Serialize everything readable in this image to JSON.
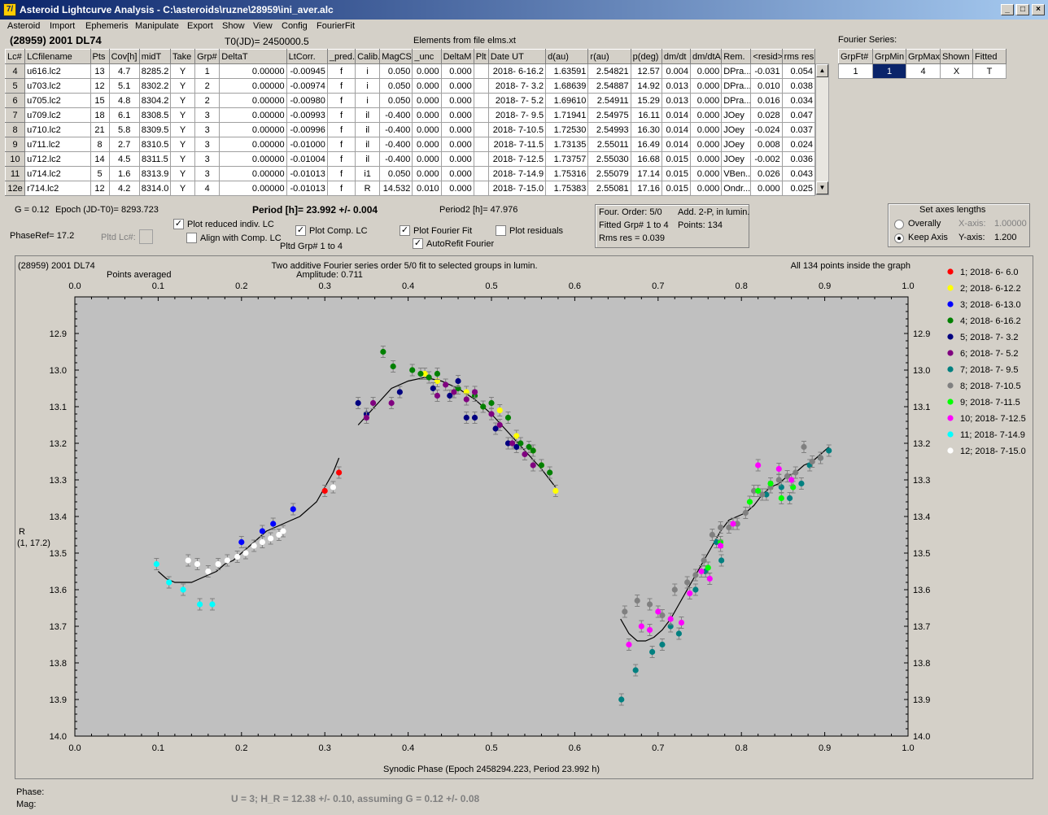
{
  "window": {
    "title": "Asteroid Lightcurve Analysis - C:\\asteroids\\ruzne\\28959\\ini_aver.alc",
    "icon_text": "7/",
    "minimize_glyph": "_",
    "maximize_glyph": "□",
    "close_glyph": "×"
  },
  "menu": [
    "Asteroid",
    "Import",
    "Ephemeris",
    "Manipulate",
    "Export",
    "Show",
    "View",
    "Config",
    "FourierFit"
  ],
  "header": {
    "asteroid": "(28959) 2001 DL74",
    "t0": "T0(JD)= 2450000.5",
    "elements": "Elements from file elms.xt"
  },
  "lc_table": {
    "columns": [
      "Lc#",
      "LCfilename",
      "Pts",
      "Cov[h]",
      "midT",
      "Take",
      "Grp#",
      "DeltaT",
      "LtCorr.",
      "_pred.",
      "Calib.",
      "MagCS",
      "_unc",
      "DeltaM",
      "Plt",
      "Date UT",
      "d(au)",
      "r(au)",
      "p(deg)",
      "dm/dt",
      "dm/dtA",
      "Rem.",
      "<resid>",
      "rms res"
    ],
    "rows": [
      [
        "4",
        "u616.lc2",
        "13",
        "4.7",
        "8285.2",
        "Y",
        "1",
        "0.00000",
        "-0.00945",
        "f",
        "i",
        "0.050",
        "0.000",
        "0.000",
        "",
        "2018- 6-16.2",
        "1.63591",
        "2.54821",
        "12.57",
        "0.004",
        "0.000",
        "DPra...",
        "-0.031",
        "0.054"
      ],
      [
        "5",
        "u703.lc2",
        "12",
        "5.1",
        "8302.2",
        "Y",
        "2",
        "0.00000",
        "-0.00974",
        "f",
        "i",
        "0.050",
        "0.000",
        "0.000",
        "",
        "2018- 7- 3.2",
        "1.68639",
        "2.54887",
        "14.92",
        "0.013",
        "0.000",
        "DPra...",
        "0.010",
        "0.038"
      ],
      [
        "6",
        "u705.lc2",
        "15",
        "4.8",
        "8304.2",
        "Y",
        "2",
        "0.00000",
        "-0.00980",
        "f",
        "i",
        "0.050",
        "0.000",
        "0.000",
        "",
        "2018- 7- 5.2",
        "1.69610",
        "2.54911",
        "15.29",
        "0.013",
        "0.000",
        "DPra...",
        "0.016",
        "0.034"
      ],
      [
        "7",
        "u709.lc2",
        "18",
        "6.1",
        "8308.5",
        "Y",
        "3",
        "0.00000",
        "-0.00993",
        "f",
        "il",
        "-0.400",
        "0.000",
        "0.000",
        "",
        "2018- 7- 9.5",
        "1.71941",
        "2.54975",
        "16.11",
        "0.014",
        "0.000",
        "JOey",
        "0.028",
        "0.047"
      ],
      [
        "8",
        "u710.lc2",
        "21",
        "5.8",
        "8309.5",
        "Y",
        "3",
        "0.00000",
        "-0.00996",
        "f",
        "il",
        "-0.400",
        "0.000",
        "0.000",
        "",
        "2018- 7-10.5",
        "1.72530",
        "2.54993",
        "16.30",
        "0.014",
        "0.000",
        "JOey",
        "-0.024",
        "0.037"
      ],
      [
        "9",
        "u711.lc2",
        "8",
        "2.7",
        "8310.5",
        "Y",
        "3",
        "0.00000",
        "-0.01000",
        "f",
        "il",
        "-0.400",
        "0.000",
        "0.000",
        "",
        "2018- 7-11.5",
        "1.73135",
        "2.55011",
        "16.49",
        "0.014",
        "0.000",
        "JOey",
        "0.008",
        "0.024"
      ],
      [
        "10",
        "u712.lc2",
        "14",
        "4.5",
        "8311.5",
        "Y",
        "3",
        "0.00000",
        "-0.01004",
        "f",
        "il",
        "-0.400",
        "0.000",
        "0.000",
        "",
        "2018- 7-12.5",
        "1.73757",
        "2.55030",
        "16.68",
        "0.015",
        "0.000",
        "JOey",
        "-0.002",
        "0.036"
      ],
      [
        "11",
        "u714.lc2",
        "5",
        "1.6",
        "8313.9",
        "Y",
        "3",
        "0.00000",
        "-0.01013",
        "f",
        "i1",
        "0.050",
        "0.000",
        "0.000",
        "",
        "2018- 7-14.9",
        "1.75316",
        "2.55079",
        "17.14",
        "0.015",
        "0.000",
        "VBen...",
        "0.026",
        "0.043"
      ],
      [
        "12e",
        "r714.lc2",
        "12",
        "4.2",
        "8314.0",
        "Y",
        "4",
        "0.00000",
        "-0.01013",
        "f",
        "R",
        "14.532",
        "0.010",
        "0.000",
        "",
        "2018- 7-15.0",
        "1.75383",
        "2.55081",
        "17.16",
        "0.015",
        "0.000",
        "Ondr...",
        "0.000",
        "0.025"
      ]
    ],
    "scroll_up": "▲",
    "scroll_down": "▼"
  },
  "fourier_series": {
    "label": "Fourier Series:",
    "columns": [
      "GrpFt#",
      "GrpMin",
      "GrpMax",
      "Shown",
      "Fitted"
    ],
    "row": [
      "1",
      "1",
      "4",
      "X",
      "T"
    ]
  },
  "info": {
    "g": "G = 0.12",
    "epoch": "Epoch (JD-T0)= 8293.723",
    "period": "Period [h]= 23.992 +/- 0.004",
    "period2": "Period2 [h]= 47.976",
    "phaseref": "PhaseRef= 17.2",
    "pltd_lc": "Pltd Lc#:",
    "plot_reduced": "Plot reduced indiv. LC",
    "align_comp": "Align with Comp. LC",
    "plot_comp": "Plot Comp. LC",
    "pltd_grp": "Pltd Grp#  1   to   4",
    "plot_fourier": "Plot Fourier Fit",
    "autorefit": "AutoRefit Fourier",
    "plot_residuals": "Plot residuals",
    "check_mark": "✓"
  },
  "fit_box": {
    "order": "Four. Order:  5/0",
    "add": "Add. 2-P, in lumin.",
    "fitted": "Fitted Grp# 1 to 4",
    "points": "Points: 134",
    "rms": "Rms res     = 0.039"
  },
  "axes_box": {
    "title": "Set axes lengths",
    "overally": "Overally",
    "keep": "Keep Axis",
    "xaxis_label": "X-axis:",
    "xaxis_value": "1.00000",
    "yaxis_label": "Y-axis:",
    "yaxis_value": "1.200"
  },
  "plot_text": {
    "asteroid": "(28959) 2001 DL74",
    "points_averaged": "Points averaged",
    "description": "Two additive Fourier series order 5/0 fit to selected groups in lumin.",
    "amplitude": "Amplitude: 0.711",
    "inside": "All 134 points inside the graph",
    "ylabel1": "R",
    "ylabel2": "(1, 17.2)",
    "xlabel": "Synodic Phase (Epoch 2458294.223, Period 23.992 h)"
  },
  "legend": [
    {
      "label": "1; 2018- 6- 6.0",
      "color": "#ff0000"
    },
    {
      "label": "2; 2018- 6-12.2",
      "color": "#ffff00"
    },
    {
      "label": "3; 2018- 6-13.0",
      "color": "#0000ff"
    },
    {
      "label": "4; 2018- 6-16.2",
      "color": "#008000"
    },
    {
      "label": "5; 2018- 7- 3.2",
      "color": "#000080"
    },
    {
      "label": "6; 2018- 7- 5.2",
      "color": "#800080"
    },
    {
      "label": "7; 2018- 7- 9.5",
      "color": "#008080"
    },
    {
      "label": "8; 2018- 7-10.5",
      "color": "#808080"
    },
    {
      "label": "9; 2018- 7-11.5",
      "color": "#00ff00"
    },
    {
      "label": "10; 2018- 7-12.5",
      "color": "#ff00ff"
    },
    {
      "label": "11; 2018- 7-14.9",
      "color": "#00ffff"
    },
    {
      "label": "12; 2018- 7-15.0",
      "color": "#ffffff"
    }
  ],
  "status": {
    "phase": "Phase:",
    "mag": "Mag:",
    "hmag": "U = 3; H_R = 12.38 +/- 0.10, assuming G = 0.12 +/- 0.08"
  },
  "chart_data": {
    "type": "scatter",
    "xlabel": "Synodic Phase (Epoch 2458294.223, Period 23.992 h)",
    "ylabel": "R",
    "xlim": [
      0.0,
      1.0
    ],
    "ylim": [
      12.8,
      14.0
    ],
    "y_inverted": true,
    "xticks": [
      "0.0",
      "0.1",
      "0.2",
      "0.3",
      "0.4",
      "0.5",
      "0.6",
      "0.7",
      "0.8",
      "0.9",
      "1.0"
    ],
    "yticks": [
      "12.9",
      "13.0",
      "13.1",
      "13.2",
      "13.3",
      "13.4",
      "13.5",
      "13.6",
      "13.7",
      "13.8",
      "13.9",
      "14.0"
    ],
    "series": [
      {
        "name": "1; 2018- 6- 6.0",
        "color": "#ff0000",
        "x": [
          0.3,
          0.317
        ],
        "y": [
          13.33,
          13.28
        ]
      },
      {
        "name": "2; 2018- 6-12.2",
        "color": "#ffff00",
        "x": [
          0.42,
          0.435,
          0.455,
          0.47,
          0.49,
          0.51,
          0.53,
          0.55,
          0.56,
          0.577
        ],
        "y": [
          13.01,
          13.03,
          13.06,
          13.06,
          13.1,
          13.11,
          13.18,
          13.22,
          13.26,
          13.33
        ]
      },
      {
        "name": "3; 2018- 6-13.0",
        "color": "#0000ff",
        "x": [
          0.2,
          0.225,
          0.238,
          0.262
        ],
        "y": [
          13.47,
          13.44,
          13.42,
          13.38
        ]
      },
      {
        "name": "4; 2018- 6-16.2",
        "color": "#008000",
        "x": [
          0.37,
          0.382,
          0.405,
          0.415,
          0.425,
          0.435,
          0.46,
          0.48,
          0.49,
          0.5,
          0.52,
          0.535,
          0.545,
          0.55,
          0.56,
          0.57
        ],
        "y": [
          12.95,
          12.99,
          13.0,
          13.01,
          13.02,
          13.01,
          13.05,
          13.07,
          13.1,
          13.09,
          13.13,
          13.2,
          13.21,
          13.22,
          13.26,
          13.28
        ]
      },
      {
        "name": "5; 2018- 7- 3.2",
        "color": "#000080",
        "x": [
          0.34,
          0.35,
          0.39,
          0.43,
          0.45,
          0.46,
          0.47,
          0.48,
          0.505,
          0.52,
          0.53
        ],
        "y": [
          13.09,
          13.12,
          13.06,
          13.05,
          13.07,
          13.03,
          13.13,
          13.13,
          13.16,
          13.2,
          13.21
        ]
      },
      {
        "name": "6; 2018- 7- 5.2",
        "color": "#800080",
        "x": [
          0.35,
          0.358,
          0.38,
          0.435,
          0.445,
          0.455,
          0.47,
          0.48,
          0.5,
          0.51,
          0.525,
          0.54,
          0.55
        ],
        "y": [
          13.13,
          13.09,
          13.09,
          13.07,
          13.04,
          13.06,
          13.08,
          13.06,
          13.12,
          13.15,
          13.2,
          13.23,
          13.26
        ]
      },
      {
        "name": "7; 2018- 7- 9.5",
        "color": "#008080",
        "x": [
          0.656,
          0.673,
          0.693,
          0.705,
          0.715,
          0.725,
          0.745,
          0.757,
          0.77,
          0.776,
          0.795,
          0.83,
          0.848,
          0.858,
          0.872,
          0.882,
          0.895,
          0.905
        ],
        "y": [
          13.9,
          13.82,
          13.77,
          13.75,
          13.7,
          13.72,
          13.6,
          13.55,
          13.47,
          13.52,
          13.42,
          13.34,
          13.32,
          13.35,
          13.31,
          13.26,
          13.24,
          13.22
        ]
      },
      {
        "name": "8; 2018- 7-10.5",
        "color": "#808080",
        "x": [
          0.66,
          0.675,
          0.69,
          0.705,
          0.72,
          0.735,
          0.745,
          0.755,
          0.765,
          0.775,
          0.785,
          0.795,
          0.805,
          0.815,
          0.825,
          0.835,
          0.845,
          0.855,
          0.865,
          0.875,
          0.885,
          0.895
        ],
        "y": [
          13.66,
          13.63,
          13.64,
          13.67,
          13.6,
          13.58,
          13.56,
          13.52,
          13.45,
          13.43,
          13.43,
          13.42,
          13.39,
          13.33,
          13.34,
          13.32,
          13.3,
          13.29,
          13.28,
          13.21,
          13.25,
          13.24
        ]
      },
      {
        "name": "9; 2018- 7-11.5",
        "color": "#00ff00",
        "x": [
          0.76,
          0.775,
          0.81,
          0.82,
          0.835,
          0.848,
          0.862
        ],
        "y": [
          13.54,
          13.47,
          13.36,
          13.33,
          13.31,
          13.35,
          13.32
        ]
      },
      {
        "name": "10; 2018- 7-12.5",
        "color": "#ff00ff",
        "x": [
          0.665,
          0.68,
          0.69,
          0.7,
          0.715,
          0.728,
          0.738,
          0.752,
          0.762,
          0.775,
          0.79,
          0.82,
          0.845,
          0.86
        ],
        "y": [
          13.75,
          13.7,
          13.71,
          13.66,
          13.68,
          13.69,
          13.61,
          13.55,
          13.57,
          13.48,
          13.42,
          13.26,
          13.27,
          13.3
        ]
      },
      {
        "name": "11; 2018- 7-14.9",
        "color": "#00ffff",
        "x": [
          0.098,
          0.113,
          0.13,
          0.15,
          0.165
        ],
        "y": [
          13.53,
          13.58,
          13.6,
          13.64,
          13.64
        ]
      },
      {
        "name": "12; 2018- 7-15.0",
        "color": "#ffffff",
        "x": [
          0.136,
          0.147,
          0.16,
          0.172,
          0.183,
          0.195,
          0.205,
          0.215,
          0.225,
          0.235,
          0.245,
          0.25,
          0.31
        ],
        "y": [
          13.52,
          13.53,
          13.55,
          13.53,
          13.52,
          13.51,
          13.5,
          13.48,
          13.47,
          13.46,
          13.45,
          13.44,
          13.32
        ]
      }
    ],
    "fit_curves": [
      {
        "x": [
          0.1,
          0.11,
          0.12,
          0.13,
          0.14,
          0.15,
          0.16,
          0.17,
          0.18,
          0.19,
          0.2,
          0.21,
          0.22,
          0.23,
          0.24,
          0.25,
          0.26,
          0.27,
          0.28,
          0.29,
          0.3,
          0.31,
          0.317
        ],
        "y": [
          13.55,
          13.57,
          13.58,
          13.58,
          13.58,
          13.57,
          13.56,
          13.55,
          13.53,
          13.52,
          13.5,
          13.48,
          13.46,
          13.44,
          13.43,
          13.42,
          13.41,
          13.4,
          13.38,
          13.36,
          13.32,
          13.28,
          13.24
        ]
      },
      {
        "x": [
          0.34,
          0.36,
          0.38,
          0.4,
          0.42,
          0.44,
          0.46,
          0.48,
          0.5,
          0.52,
          0.54,
          0.56,
          0.577
        ],
        "y": [
          13.15,
          13.1,
          13.05,
          13.03,
          13.02,
          13.03,
          13.05,
          13.08,
          13.12,
          13.17,
          13.22,
          13.27,
          13.32
        ]
      },
      {
        "x": [
          0.655,
          0.665,
          0.675,
          0.685,
          0.695,
          0.705,
          0.715,
          0.725,
          0.735,
          0.745,
          0.755,
          0.765,
          0.775,
          0.785,
          0.795,
          0.805,
          0.815,
          0.825,
          0.835,
          0.845,
          0.855,
          0.865,
          0.875,
          0.885,
          0.895,
          0.905
        ],
        "y": [
          13.68,
          13.72,
          13.74,
          13.74,
          13.73,
          13.71,
          13.68,
          13.64,
          13.6,
          13.56,
          13.52,
          13.48,
          13.44,
          13.41,
          13.4,
          13.39,
          13.37,
          13.34,
          13.32,
          13.31,
          13.29,
          13.28,
          13.26,
          13.25,
          13.23,
          13.21
        ]
      }
    ]
  }
}
